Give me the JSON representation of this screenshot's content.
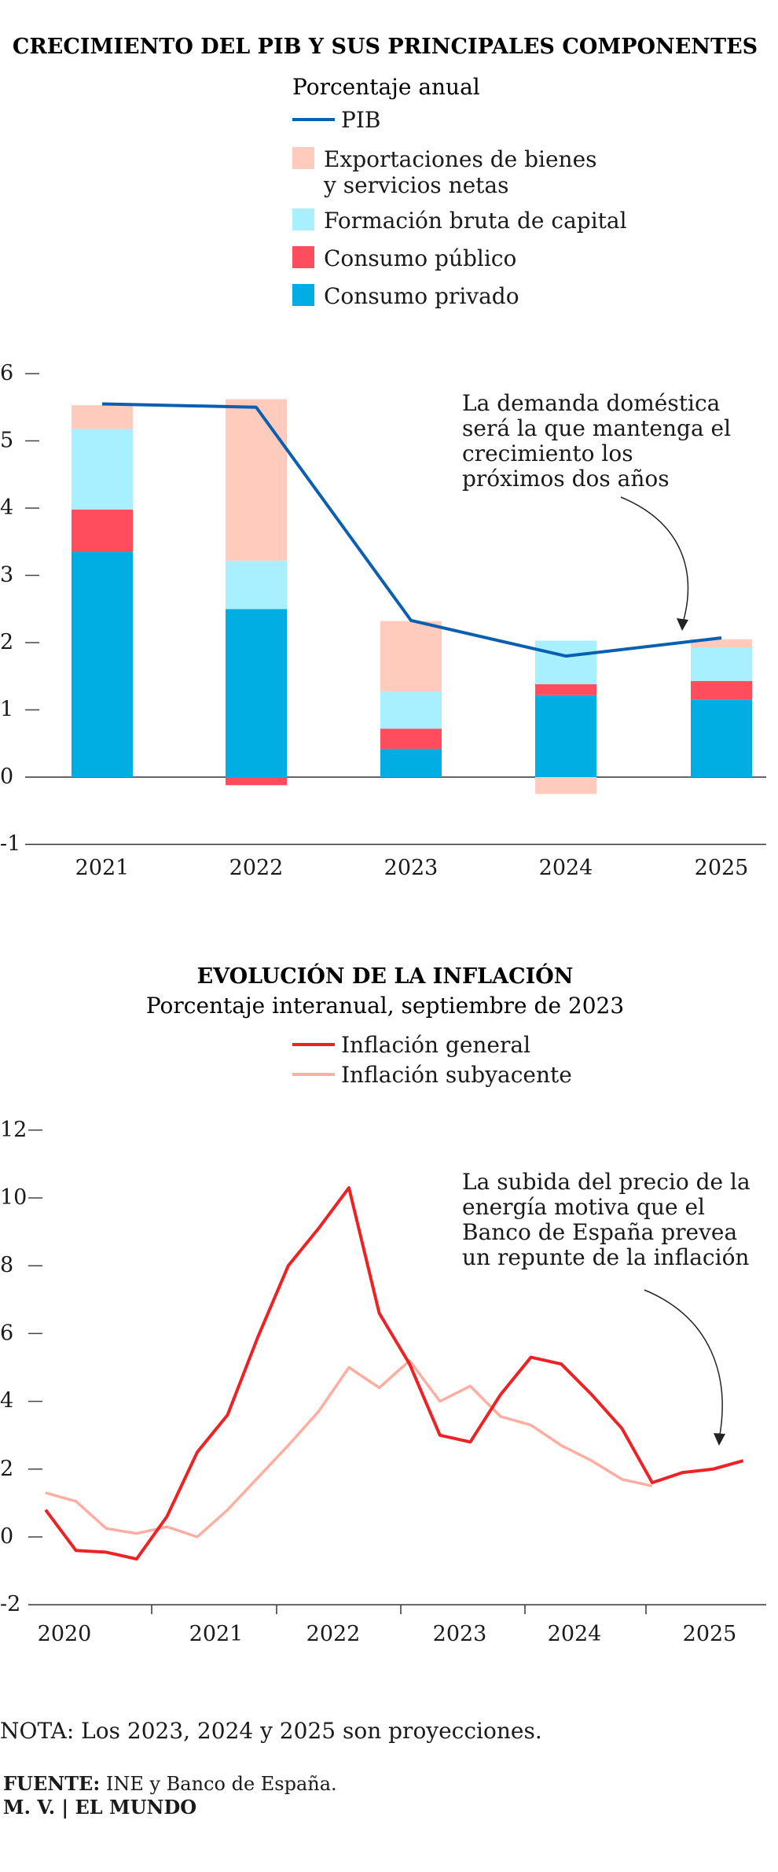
{
  "chart_data": [
    {
      "type": "bar",
      "title": "CRECIMIENTO DEL PIB Y SUS PRINCIPALES COMPONENTES",
      "subtitle": "Porcentaje anual",
      "categories": [
        "2021",
        "2022",
        "2023",
        "2024",
        "2025"
      ],
      "stacked": true,
      "series": [
        {
          "name": "Consumo privado",
          "color": "#00aee3",
          "values": [
            3.35,
            2.5,
            0.42,
            1.22,
            1.15
          ]
        },
        {
          "name": "Consumo público",
          "color": "#ff4d5e",
          "values": [
            0.63,
            -0.12,
            0.3,
            0.16,
            0.28
          ]
        },
        {
          "name": "Formación bruta de capital",
          "color": "#a8efff",
          "values": [
            1.2,
            0.72,
            0.55,
            0.65,
            0.5
          ]
        },
        {
          "name": "Exportaciones de bienes y servicios netas",
          "color": "#ffcbbd",
          "values": [
            0.35,
            2.4,
            1.05,
            -0.25,
            0.12
          ]
        }
      ],
      "line": {
        "name": "PIB",
        "color": "#0a5fb0",
        "values": [
          5.55,
          5.5,
          2.33,
          1.8,
          2.07
        ]
      },
      "legend_order": [
        {
          "name": "PIB",
          "line1": "PIB",
          "line2": "",
          "swatch": "line",
          "color": "#0a5fb0"
        },
        {
          "name": "Exportaciones de bienes y servicios netas",
          "line1": "Exportaciones de bienes",
          "line2": "y servicios netas",
          "swatch": "box",
          "color": "#ffcbbd"
        },
        {
          "name": "Formación bruta de capital",
          "line1": "Formación bruta de capital",
          "line2": "",
          "swatch": "box",
          "color": "#a8efff"
        },
        {
          "name": "Consumo público",
          "line1": "Consumo público",
          "line2": "",
          "swatch": "box",
          "color": "#ff4d5e"
        },
        {
          "name": "Consumo privado",
          "line1": "Consumo privado",
          "line2": "",
          "swatch": "box",
          "color": "#00aee3"
        }
      ],
      "yticks": [
        6,
        5,
        4,
        3,
        2,
        1,
        0,
        -1
      ],
      "ylim": [
        -1,
        6
      ],
      "annotation": [
        "La demanda doméstica",
        "será la que mantenga el",
        "crecimiento los",
        "próximos dos años"
      ]
    },
    {
      "type": "line",
      "title": "EVOLUCIÓN DE LA INFLACIÓN",
      "subtitle": "Porcentaje interanual, septiembre de 2023",
      "x": [
        "2020-Q1",
        "2020-Q2",
        "2020-Q3",
        "2020-Q4",
        "2021-Q1",
        "2021-Q2",
        "2021-Q3",
        "2021-Q4",
        "2022-Q1",
        "2022-Q2",
        "2022-Q3",
        "2022-Q4",
        "2023-Q1",
        "2023-Q2",
        "2023-Q3",
        "2023-Q4",
        "2024-Q1",
        "2024-Q2",
        "2024-Q3",
        "2024-Q4",
        "2025-Q1",
        "2025-Q2",
        "2025-Q3",
        "2025-Q4"
      ],
      "series": [
        {
          "name": "Inflación general",
          "color": "#ee2224",
          "values": [
            0.8,
            -0.4,
            -0.45,
            -0.65,
            0.6,
            2.5,
            3.6,
            5.9,
            8.0,
            9.1,
            10.3,
            6.6,
            5.1,
            3.0,
            2.8,
            4.2,
            5.3,
            5.1,
            4.2,
            3.2,
            1.6,
            1.9,
            2.0,
            2.25
          ]
        },
        {
          "name": "Inflación subyacente",
          "color": "#ffaea1",
          "values": [
            1.3,
            1.05,
            0.25,
            0.1,
            0.3,
            0.0,
            0.8,
            1.75,
            2.7,
            3.7,
            5.0,
            4.4,
            5.2,
            4.0,
            4.45,
            3.55,
            3.3,
            2.7,
            2.25,
            1.7,
            1.5,
            null,
            null,
            null
          ]
        }
      ],
      "xticks": [
        "2020",
        "2021",
        "2022",
        "2023",
        "2024",
        "2025"
      ],
      "yticks": [
        12,
        10,
        8,
        6,
        4,
        2,
        0,
        -2
      ],
      "ylim": [
        -2,
        12
      ],
      "annotation": [
        "La subida del precio de la",
        "energía motiva que el",
        "Banco de España prevea",
        "un repunte de la inflación"
      ]
    }
  ],
  "footer": {
    "note": "NOTA: Los 2023, 2024 y 2025 son proyecciones.",
    "source_label": "FUENTE:",
    "source_text": " INE y Banco de España.",
    "credit": "M. V. | EL MUNDO"
  }
}
